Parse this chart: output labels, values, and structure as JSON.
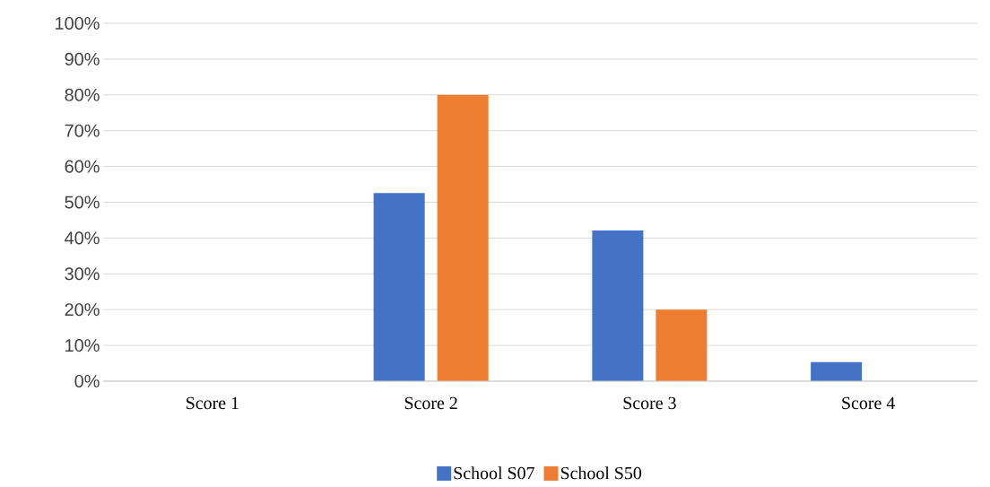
{
  "chart_data": {
    "type": "bar",
    "categories": [
      "Score 1",
      "Score 2",
      "Score 3",
      "Score 4"
    ],
    "series": [
      {
        "name": "School S07",
        "color": "#4472c4",
        "values": [
          0,
          52.6,
          42.1,
          5.3
        ]
      },
      {
        "name": "School S50",
        "color": "#ed7d31",
        "values": [
          0,
          80,
          20,
          0
        ]
      }
    ],
    "ylim": [
      0,
      100
    ],
    "yticks": [
      {
        "value": 0,
        "label": "0%"
      },
      {
        "value": 10,
        "label": "10%"
      },
      {
        "value": 20,
        "label": "20%"
      },
      {
        "value": 30,
        "label": "30%"
      },
      {
        "value": 40,
        "label": "40%"
      },
      {
        "value": 50,
        "label": "50%"
      },
      {
        "value": 60,
        "label": "60%"
      },
      {
        "value": 70,
        "label": "70%"
      },
      {
        "value": 80,
        "label": "80%"
      },
      {
        "value": 90,
        "label": "90%"
      },
      {
        "value": 100,
        "label": "100%"
      }
    ],
    "grid": "y",
    "legend": "bottom"
  }
}
